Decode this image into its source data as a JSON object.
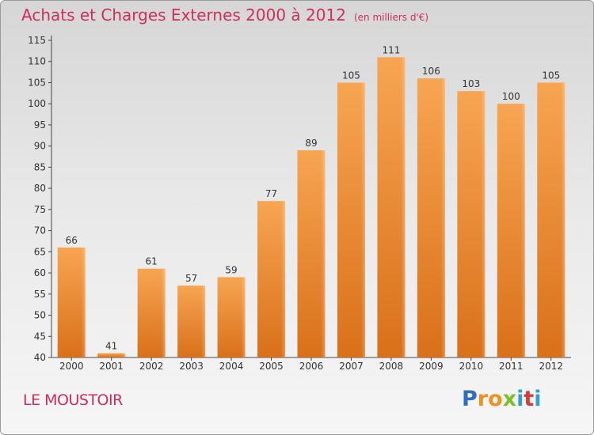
{
  "chart_data": {
    "type": "bar",
    "title": "Achats et Charges Externes 2000 à 2012",
    "subtitle": "(en milliers d'€)",
    "categories": [
      "2000",
      "2001",
      "2002",
      "2003",
      "2004",
      "2005",
      "2006",
      "2007",
      "2008",
      "2009",
      "2010",
      "2011",
      "2012"
    ],
    "values": [
      66,
      41,
      61,
      57,
      59,
      77,
      89,
      105,
      111,
      106,
      103,
      100,
      105
    ],
    "ylim": [
      40,
      115
    ],
    "yticks": [
      40,
      45,
      50,
      55,
      60,
      65,
      70,
      75,
      80,
      85,
      90,
      95,
      100,
      105,
      110,
      115
    ],
    "grid": false,
    "bar_color": "#f0913a"
  },
  "place_name": "LE MOUSTOIR",
  "logo": {
    "letters": [
      "P",
      "r",
      "o",
      "x",
      "i",
      "t",
      "i"
    ],
    "colors": [
      "#2e6fc4",
      "#f09020",
      "#f09020",
      "#7bbf2a",
      "#2e9fd8",
      "#d83a3a",
      "#2e9fd8"
    ]
  }
}
